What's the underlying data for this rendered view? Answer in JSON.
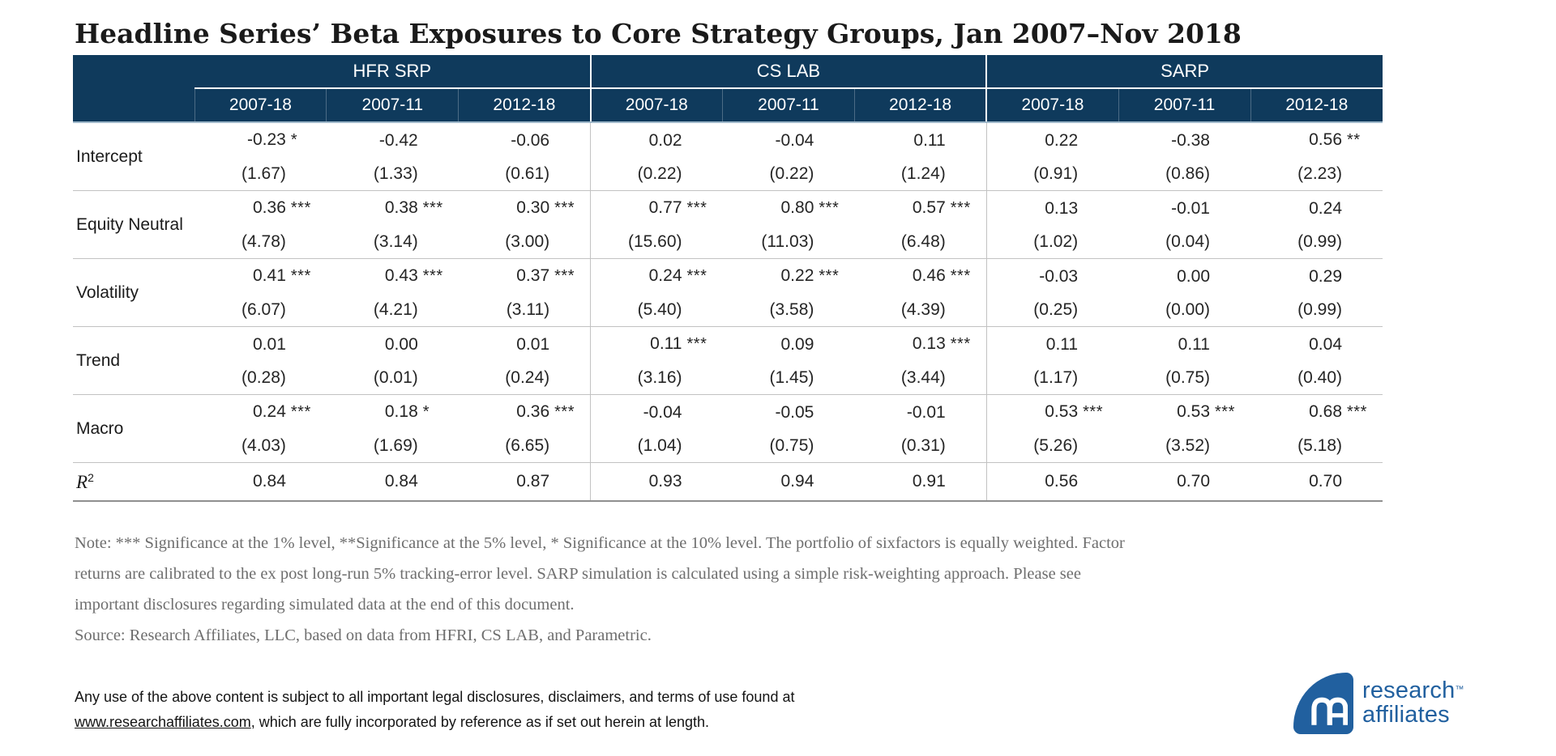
{
  "title": "Headline Series’ Beta Exposures to Core Strategy Groups, Jan 2007–Nov 2018",
  "table": {
    "groups": [
      "HFR SRP",
      "CS LAB",
      "SARP"
    ],
    "periods": [
      "2007-18",
      "2007-11",
      "2012-18"
    ],
    "rows": [
      {
        "label": "Intercept",
        "cells": [
          {
            "value": "-0.23",
            "stars": "*",
            "t": "(1.67)"
          },
          {
            "value": "-0.42",
            "stars": "",
            "t": "(1.33)"
          },
          {
            "value": "-0.06",
            "stars": "",
            "t": "(0.61)"
          },
          {
            "value": "0.02",
            "stars": "",
            "t": "(0.22)"
          },
          {
            "value": "-0.04",
            "stars": "",
            "t": "(0.22)"
          },
          {
            "value": "0.11",
            "stars": "",
            "t": "(1.24)"
          },
          {
            "value": "0.22",
            "stars": "",
            "t": "(0.91)"
          },
          {
            "value": "-0.38",
            "stars": "",
            "t": "(0.86)"
          },
          {
            "value": "0.56",
            "stars": "**",
            "t": "(2.23)"
          }
        ]
      },
      {
        "label": "Equity Neutral",
        "cells": [
          {
            "value": "0.36",
            "stars": "***",
            "t": "(4.78)"
          },
          {
            "value": "0.38",
            "stars": "***",
            "t": "(3.14)"
          },
          {
            "value": "0.30",
            "stars": "***",
            "t": "(3.00)"
          },
          {
            "value": "0.77",
            "stars": "***",
            "t": "(15.60)"
          },
          {
            "value": "0.80",
            "stars": "***",
            "t": "(11.03)"
          },
          {
            "value": "0.57",
            "stars": "***",
            "t": "(6.48)"
          },
          {
            "value": "0.13",
            "stars": "",
            "t": "(1.02)"
          },
          {
            "value": "-0.01",
            "stars": "",
            "t": "(0.04)"
          },
          {
            "value": "0.24",
            "stars": "",
            "t": "(0.99)"
          }
        ]
      },
      {
        "label": "Volatility",
        "cells": [
          {
            "value": "0.41",
            "stars": "***",
            "t": "(6.07)"
          },
          {
            "value": "0.43",
            "stars": "***",
            "t": "(4.21)"
          },
          {
            "value": "0.37",
            "stars": "***",
            "t": "(3.11)"
          },
          {
            "value": "0.24",
            "stars": "***",
            "t": "(5.40)"
          },
          {
            "value": "0.22",
            "stars": "***",
            "t": "(3.58)"
          },
          {
            "value": "0.46",
            "stars": "***",
            "t": "(4.39)"
          },
          {
            "value": "-0.03",
            "stars": "",
            "t": "(0.25)"
          },
          {
            "value": "0.00",
            "stars": "",
            "t": "(0.00)"
          },
          {
            "value": "0.29",
            "stars": "",
            "t": "(0.99)"
          }
        ]
      },
      {
        "label": "Trend",
        "cells": [
          {
            "value": "0.01",
            "stars": "",
            "t": "(0.28)"
          },
          {
            "value": "0.00",
            "stars": "",
            "t": "(0.01)"
          },
          {
            "value": "0.01",
            "stars": "",
            "t": "(0.24)"
          },
          {
            "value": "0.11",
            "stars": "***",
            "t": "(3.16)"
          },
          {
            "value": "0.09",
            "stars": "",
            "t": "(1.45)"
          },
          {
            "value": "0.13",
            "stars": "***",
            "t": "(3.44)"
          },
          {
            "value": "0.11",
            "stars": "",
            "t": "(1.17)"
          },
          {
            "value": "0.11",
            "stars": "",
            "t": "(0.75)"
          },
          {
            "value": "0.04",
            "stars": "",
            "t": "(0.40)"
          }
        ]
      },
      {
        "label": "Macro",
        "cells": [
          {
            "value": "0.24",
            "stars": "***",
            "t": "(4.03)"
          },
          {
            "value": "0.18",
            "stars": "*",
            "t": "(1.69)"
          },
          {
            "value": "0.36",
            "stars": "***",
            "t": "(6.65)"
          },
          {
            "value": "-0.04",
            "stars": "",
            "t": "(1.04)"
          },
          {
            "value": "-0.05",
            "stars": "",
            "t": "(0.75)"
          },
          {
            "value": "-0.01",
            "stars": "",
            "t": "(0.31)"
          },
          {
            "value": "0.53",
            "stars": "***",
            "t": "(5.26)"
          },
          {
            "value": "0.53",
            "stars": "***",
            "t": "(3.52)"
          },
          {
            "value": "0.68",
            "stars": "***",
            "t": "(5.18)"
          }
        ]
      }
    ],
    "r2": {
      "label": "R",
      "sup": "2",
      "values": [
        "0.84",
        "0.84",
        "0.87",
        "0.93",
        "0.94",
        "0.91",
        "0.56",
        "0.70",
        "0.70"
      ]
    }
  },
  "note": {
    "lines": [
      "Note: *** Significance at the 1% level, **Significance at the 5% level, * Significance at the 10% level. The portfolio of sixfactors is equally weighted. Factor",
      "returns are calibrated to the ex post long-run 5% tracking-error level. SARP simulation is calculated using a simple risk-weighting approach. Please see",
      "important disclosures regarding simulated data at the end of this document."
    ],
    "source": "Source: Research Affiliates, LLC, based on data from HFRI, CS LAB, and Parametric."
  },
  "legal": {
    "line1": "Any use of the above content is subject to all important legal disclosures, disclaimers, and terms of use found at",
    "link": "www.researchaffiliates.com",
    "line2_rest": ", which are fully incorporated by reference as if set out herein at length."
  },
  "logo": {
    "brand_line1": "research",
    "brand_line2": "affiliates",
    "trademark": "™"
  },
  "colors": {
    "header_navy": "#0f3a5c",
    "logo_blue": "#21609f"
  }
}
